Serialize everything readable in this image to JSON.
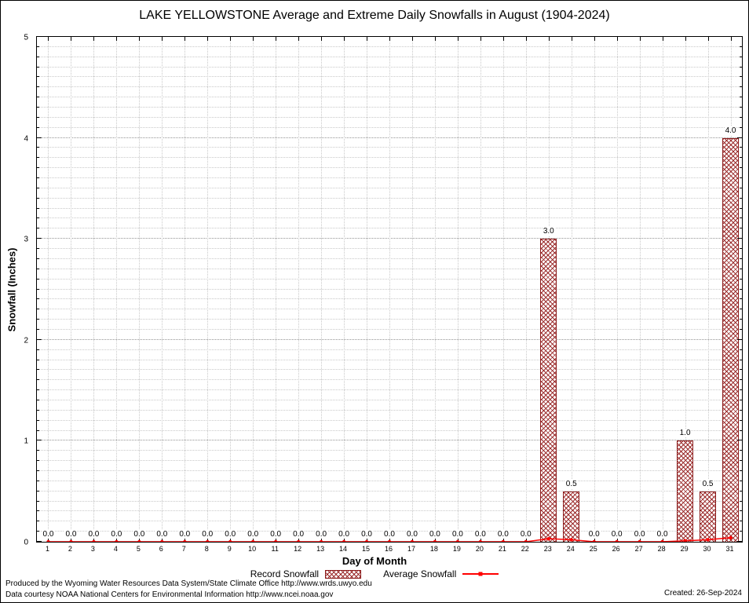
{
  "chart_data": {
    "type": "bar",
    "title": "LAKE YELLOWSTONE Average and Extreme Daily Snowfalls in August (1904-2024)",
    "xlabel": "Day of Month",
    "ylabel": "Snowfall (Inches)",
    "ylim": [
      0,
      5
    ],
    "y_major_ticks": [
      0,
      1,
      2,
      3,
      4,
      5
    ],
    "y_minor_step": 0.1,
    "grid": true,
    "legend_position": "bottom",
    "categories": [
      1,
      2,
      3,
      4,
      5,
      6,
      7,
      8,
      9,
      10,
      11,
      12,
      13,
      14,
      15,
      16,
      17,
      18,
      19,
      20,
      21,
      22,
      23,
      24,
      25,
      26,
      27,
      28,
      29,
      30,
      31
    ],
    "series": [
      {
        "name": "Record Snowfall",
        "type": "bar",
        "color": "#9b2c2c",
        "border_color": "#8b1a1a",
        "values": [
          0,
          0,
          0,
          0,
          0,
          0,
          0,
          0,
          0,
          0,
          0,
          0,
          0,
          0,
          0,
          0,
          0,
          0,
          0,
          0,
          0,
          0,
          3.0,
          0.5,
          0,
          0,
          0,
          0,
          1.0,
          0.5,
          4.0
        ],
        "labels": [
          "0.0",
          "0.0",
          "0.0",
          "0.0",
          "0.0",
          "0.0",
          "0.0",
          "0.0",
          "0.0",
          "0.0",
          "0.0",
          "0.0",
          "0.0",
          "0.0",
          "0.0",
          "0.0",
          "0.0",
          "0.0",
          "0.0",
          "0.0",
          "0.0",
          "0.0",
          "3.0",
          "0.5",
          "0.0",
          "0.0",
          "0.0",
          "0.0",
          "1.0",
          "0.5",
          "4.0"
        ]
      },
      {
        "name": "Average Snowfall",
        "type": "line",
        "color": "#ff0000",
        "values": [
          0,
          0,
          0,
          0,
          0,
          0,
          0,
          0,
          0,
          0,
          0,
          0,
          0,
          0,
          0,
          0,
          0,
          0,
          0,
          0,
          0,
          0,
          0.03,
          0.02,
          0,
          0,
          0,
          0,
          0.01,
          0.02,
          0.04
        ]
      }
    ]
  },
  "legend": {
    "record": "Record Snowfall",
    "average": "Average Snowfall"
  },
  "footer": {
    "line1": "Produced by the Wyoming Water Resources Data System/State Climate Office http://www.wrds.uwyo.edu",
    "line2": "Data courtesy NOAA National Centers for Environmental Information http://www.ncei.noaa.gov",
    "created": "Created: 26-Sep-2024"
  }
}
